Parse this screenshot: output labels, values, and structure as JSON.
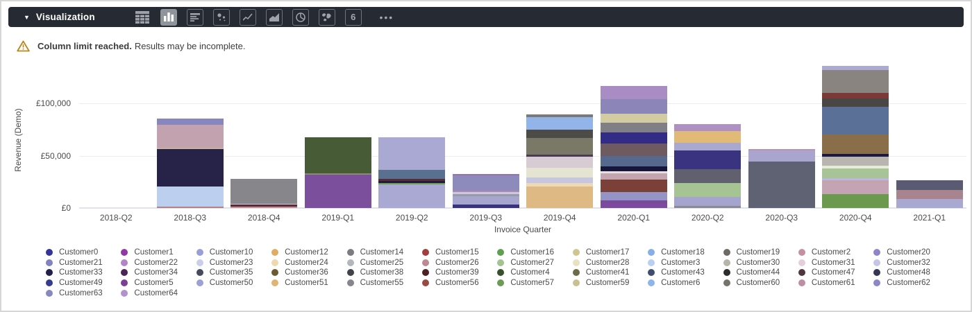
{
  "toolbar": {
    "title": "Visualization",
    "counter_icon_label": "6",
    "bg_color": "#262b33",
    "selected_icon": "bar-chart",
    "icon_names": [
      "table-icon",
      "bar-chart-icon",
      "horizontal-bars-icon",
      "bubble-chart-icon",
      "line-chart-icon",
      "area-chart-icon",
      "pie-chart-icon",
      "map-icon",
      "counter-icon",
      "more-icon"
    ]
  },
  "warning": {
    "bold_text": "Column limit reached.",
    "text": "Results may be incomplete.",
    "icon": "warning-triangle-icon",
    "icon_color": "#b8861c"
  },
  "chart_data": {
    "type": "bar",
    "stacked": true,
    "xlabel": "Invoice Quarter",
    "ylabel": "Revenue (Demo)",
    "ylim": [
      0,
      135000
    ],
    "grid": true,
    "legend_position": "bottom",
    "currency": "GBP",
    "y_ticks": [
      {
        "label": "£0",
        "value": 0
      },
      {
        "label": "£50,000",
        "value": 50000
      },
      {
        "label": "£100,000",
        "value": 100000
      }
    ],
    "categories": [
      "2018-Q2",
      "2018-Q3",
      "2018-Q4",
      "2019-Q1",
      "2019-Q2",
      "2019-Q3",
      "2019-Q4",
      "2020-Q1",
      "2020-Q2",
      "2020-Q3",
      "2020-Q4",
      "2021-Q1"
    ],
    "totals": [
      0,
      85500,
      27800,
      67600,
      67600,
      32500,
      89600,
      116300,
      80400,
      56300,
      136000,
      26500
    ],
    "bars": [
      {
        "category": "2018-Q2",
        "segments": []
      },
      {
        "category": "2018-Q3",
        "segments": [
          {
            "customer": "Customer26",
            "color": "#b08486",
            "value": 1500
          },
          {
            "customer": "Customer3",
            "color": "#bdcfee",
            "value": 19000
          },
          {
            "customer": "Customer33",
            "color": "#272348",
            "value": 36000
          },
          {
            "customer": "Customer24",
            "color": "#c7b29b",
            "value": 1000
          },
          {
            "customer": "Customer2",
            "color": "#c2a2ae",
            "value": 22000
          },
          {
            "customer": "Customer21",
            "color": "#8786be",
            "value": 6000
          }
        ]
      },
      {
        "category": "2018-Q4",
        "segments": [
          {
            "customer": "Customer2",
            "color": "#c09098",
            "value": 1000
          },
          {
            "customer": "Customer39",
            "color": "#5c2a33",
            "value": 2000
          },
          {
            "customer": "Customer23",
            "color": "#c5cbe8",
            "value": 1300
          },
          {
            "customer": "Customer14",
            "color": "#87878b",
            "value": 23500
          }
        ]
      },
      {
        "category": "2019-Q1",
        "segments": [
          {
            "customer": "Customer5",
            "color": "#7c4f9c",
            "value": 31800
          },
          {
            "customer": "Customer41",
            "color": "#8a8a7a",
            "value": 1300
          },
          {
            "customer": "Customer4",
            "color": "#475b36",
            "value": 34500
          }
        ]
      },
      {
        "category": "2019-Q2",
        "segments": [
          {
            "customer": "Customer10",
            "color": "#a9a9d3",
            "value": 22500
          },
          {
            "customer": "Customer57",
            "color": "#6fa05a",
            "value": 1500
          },
          {
            "customer": "Customer33",
            "color": "#1e1e3c",
            "value": 2000
          },
          {
            "customer": "Customer39",
            "color": "#5a2a35",
            "value": 2000
          },
          {
            "customer": "Customer43",
            "color": "#5a7090",
            "value": 8600
          },
          {
            "customer": "Customer50",
            "color": "#a9a9d3",
            "value": 31000
          }
        ]
      },
      {
        "category": "2019-Q3",
        "segments": [
          {
            "customer": "Customer49",
            "color": "#39327e",
            "value": 3300
          },
          {
            "customer": "Customer50",
            "color": "#a5a5cf",
            "value": 8000
          },
          {
            "customer": "Customer14",
            "color": "#9a9aa2",
            "value": 2000
          },
          {
            "customer": "Customer23",
            "color": "#c9c9e6",
            "value": 1700
          },
          {
            "customer": "Customer22",
            "color": "#b088b0",
            "value": 1700
          },
          {
            "customer": "Customer62",
            "color": "#8d8abc",
            "value": 14300
          },
          {
            "customer": "Customer1",
            "color": "#9a70b0",
            "value": 1500
          }
        ]
      },
      {
        "category": "2019-Q4",
        "segments": [
          {
            "customer": "Customer12",
            "color": "#dfb983",
            "value": 20500
          },
          {
            "customer": "Customer24",
            "color": "#ebd9b8",
            "value": 3300
          },
          {
            "customer": "Customer32",
            "color": "#c6c6de",
            "value": 5300
          },
          {
            "customer": "Customer28",
            "color": "#e5e3d1",
            "value": 9300
          },
          {
            "customer": "Customer31",
            "color": "#d8ccd4",
            "value": 10600
          },
          {
            "customer": "Customer47",
            "color": "#4a3a52",
            "value": 2000
          },
          {
            "customer": "Customer41",
            "color": "#7a7866",
            "value": 16000
          },
          {
            "customer": "Customer38",
            "color": "#4d4b47",
            "value": 8000
          },
          {
            "customer": "Customer6",
            "color": "#92b4e8",
            "value": 12000
          },
          {
            "customer": "Customer19",
            "color": "#7a7a7a",
            "value": 2600
          }
        ]
      },
      {
        "category": "2020-Q1",
        "segments": [
          {
            "customer": "Customer5",
            "color": "#7c4a9c",
            "value": 7300
          },
          {
            "customer": "Customer21",
            "color": "#9494c6",
            "value": 8000
          },
          {
            "customer": "Customer15",
            "color": "#7b4038",
            "value": 12000
          },
          {
            "customer": "Customer2",
            "color": "#c4a4ae",
            "value": 6000
          },
          {
            "customer": "Customer31",
            "color": "#e8e0e0",
            "value": 2000
          },
          {
            "customer": "Customer33",
            "color": "#16163a",
            "value": 4600
          },
          {
            "customer": "Customer43",
            "color": "#55688e",
            "value": 10000
          },
          {
            "customer": "Customer47",
            "color": "#6f5a60",
            "value": 12000
          },
          {
            "customer": "Customer49",
            "color": "#332c86",
            "value": 10600
          },
          {
            "customer": "Customer14",
            "color": "#7f7f85",
            "value": 9300
          },
          {
            "customer": "Customer17",
            "color": "#d3cca2",
            "value": 8600
          },
          {
            "customer": "Customer63",
            "color": "#8a87b8",
            "value": 13300
          },
          {
            "customer": "Customer64",
            "color": "#a98cc4",
            "value": 12600
          }
        ]
      },
      {
        "category": "2020-Q2",
        "segments": [
          {
            "customer": "Customer55",
            "color": "#8a8a92",
            "value": 2000
          },
          {
            "customer": "Customer50",
            "color": "#a4a4ce",
            "value": 8600
          },
          {
            "customer": "Customer27",
            "color": "#a6c493",
            "value": 13300
          },
          {
            "customer": "Customer35",
            "color": "#60606e",
            "value": 13300
          },
          {
            "customer": "Customer49",
            "color": "#3a3480",
            "value": 18000
          },
          {
            "customer": "Customer10",
            "color": "#a8a8d0",
            "value": 7300
          },
          {
            "customer": "Customer51",
            "color": "#e2ba78",
            "value": 11300
          },
          {
            "customer": "Customer64",
            "color": "#ae90c4",
            "value": 6600
          }
        ]
      },
      {
        "category": "2020-Q3",
        "segments": [
          {
            "customer": "Customer35",
            "color": "#5f6272",
            "value": 44400
          },
          {
            "customer": "Customer10",
            "color": "#a9a5ce",
            "value": 10600
          },
          {
            "customer": "Customer61",
            "color": "#c090b0",
            "value": 1300
          }
        ]
      },
      {
        "category": "2020-Q4",
        "segments": [
          {
            "customer": "Customer57",
            "color": "#6b9a4e",
            "value": 13300
          },
          {
            "customer": "Customer61",
            "color": "#c4a4b2",
            "value": 13300
          },
          {
            "customer": "Customer23",
            "color": "#b8b8dc",
            "value": 2000
          },
          {
            "customer": "Customer27",
            "color": "#a8c496",
            "value": 9300
          },
          {
            "customer": "Customer28",
            "color": "#e6ead8",
            "value": 2600
          },
          {
            "customer": "Customer30",
            "color": "#b9b5b1",
            "value": 8600
          },
          {
            "customer": "Customer33",
            "color": "#1a1a40",
            "value": 2600
          },
          {
            "customer": "Customer36",
            "color": "#8a6e4a",
            "value": 18500
          },
          {
            "customer": "Customer43",
            "color": "#5a7096",
            "value": 26500
          },
          {
            "customer": "Customer38",
            "color": "#4a4644",
            "value": 8000
          },
          {
            "customer": "Customer39",
            "color": "#7b3a38",
            "value": 5300
          },
          {
            "customer": "Customer60",
            "color": "#8a8480",
            "value": 22000
          },
          {
            "customer": "Customer20",
            "color": "#aaaad4",
            "value": 4000
          }
        ]
      },
      {
        "category": "2021-Q1",
        "segments": [
          {
            "customer": "Customer10",
            "color": "#a8a8d0",
            "value": 8600
          },
          {
            "customer": "Customer26",
            "color": "#a8848e",
            "value": 8600
          },
          {
            "customer": "Customer35",
            "color": "#5a5a72",
            "value": 9300
          }
        ]
      }
    ],
    "legend": [
      {
        "label": "Customer0",
        "color": "#34349a"
      },
      {
        "label": "Customer1",
        "color": "#9138a8"
      },
      {
        "label": "Customer10",
        "color": "#9a9ed6"
      },
      {
        "label": "Customer12",
        "color": "#dfae63"
      },
      {
        "label": "Customer14",
        "color": "#7b7b80"
      },
      {
        "label": "Customer15",
        "color": "#a13f3f"
      },
      {
        "label": "Customer16",
        "color": "#5fa04e"
      },
      {
        "label": "Customer17",
        "color": "#cfc68f"
      },
      {
        "label": "Customer18",
        "color": "#85aeea"
      },
      {
        "label": "Customer19",
        "color": "#6e6a66"
      },
      {
        "label": "Customer2",
        "color": "#c38fa2"
      },
      {
        "label": "Customer20",
        "color": "#8d85c8"
      },
      {
        "label": "Customer21",
        "color": "#8083bc"
      },
      {
        "label": "Customer22",
        "color": "#b186c8"
      },
      {
        "label": "Customer23",
        "color": "#c9ceea"
      },
      {
        "label": "Customer24",
        "color": "#efd9ae"
      },
      {
        "label": "Customer25",
        "color": "#b3b7bd"
      },
      {
        "label": "Customer26",
        "color": "#bb8a92"
      },
      {
        "label": "Customer27",
        "color": "#a3c491"
      },
      {
        "label": "Customer28",
        "color": "#e7e3c2"
      },
      {
        "label": "Customer3",
        "color": "#b9cff2"
      },
      {
        "label": "Customer30",
        "color": "#b5b5a9"
      },
      {
        "label": "Customer31",
        "color": "#e5ceda"
      },
      {
        "label": "Customer32",
        "color": "#c5c6e5"
      },
      {
        "label": "Customer33",
        "color": "#20204a"
      },
      {
        "label": "Customer34",
        "color": "#4c2355"
      },
      {
        "label": "Customer35",
        "color": "#474a5e"
      },
      {
        "label": "Customer36",
        "color": "#6d5a31"
      },
      {
        "label": "Customer38",
        "color": "#3f4347"
      },
      {
        "label": "Customer39",
        "color": "#4c2121"
      },
      {
        "label": "Customer4",
        "color": "#37522b"
      },
      {
        "label": "Customer41",
        "color": "#6e6c46"
      },
      {
        "label": "Customer43",
        "color": "#3f4e6e"
      },
      {
        "label": "Customer44",
        "color": "#2b2b2b"
      },
      {
        "label": "Customer47",
        "color": "#4f3641"
      },
      {
        "label": "Customer48",
        "color": "#343754"
      },
      {
        "label": "Customer49",
        "color": "#383a8e"
      },
      {
        "label": "Customer5",
        "color": "#7c3f98"
      },
      {
        "label": "Customer50",
        "color": "#9ca0d2"
      },
      {
        "label": "Customer51",
        "color": "#dfb572"
      },
      {
        "label": "Customer55",
        "color": "#85868c"
      },
      {
        "label": "Customer56",
        "color": "#9a4843"
      },
      {
        "label": "Customer57",
        "color": "#6c9b55"
      },
      {
        "label": "Customer59",
        "color": "#c9c193"
      },
      {
        "label": "Customer6",
        "color": "#8fb4ec"
      },
      {
        "label": "Customer60",
        "color": "#76726e"
      },
      {
        "label": "Customer61",
        "color": "#bc8fa5"
      },
      {
        "label": "Customer62",
        "color": "#8c87c6"
      },
      {
        "label": "Customer63",
        "color": "#8789be"
      },
      {
        "label": "Customer64",
        "color": "#b291cc"
      }
    ]
  }
}
